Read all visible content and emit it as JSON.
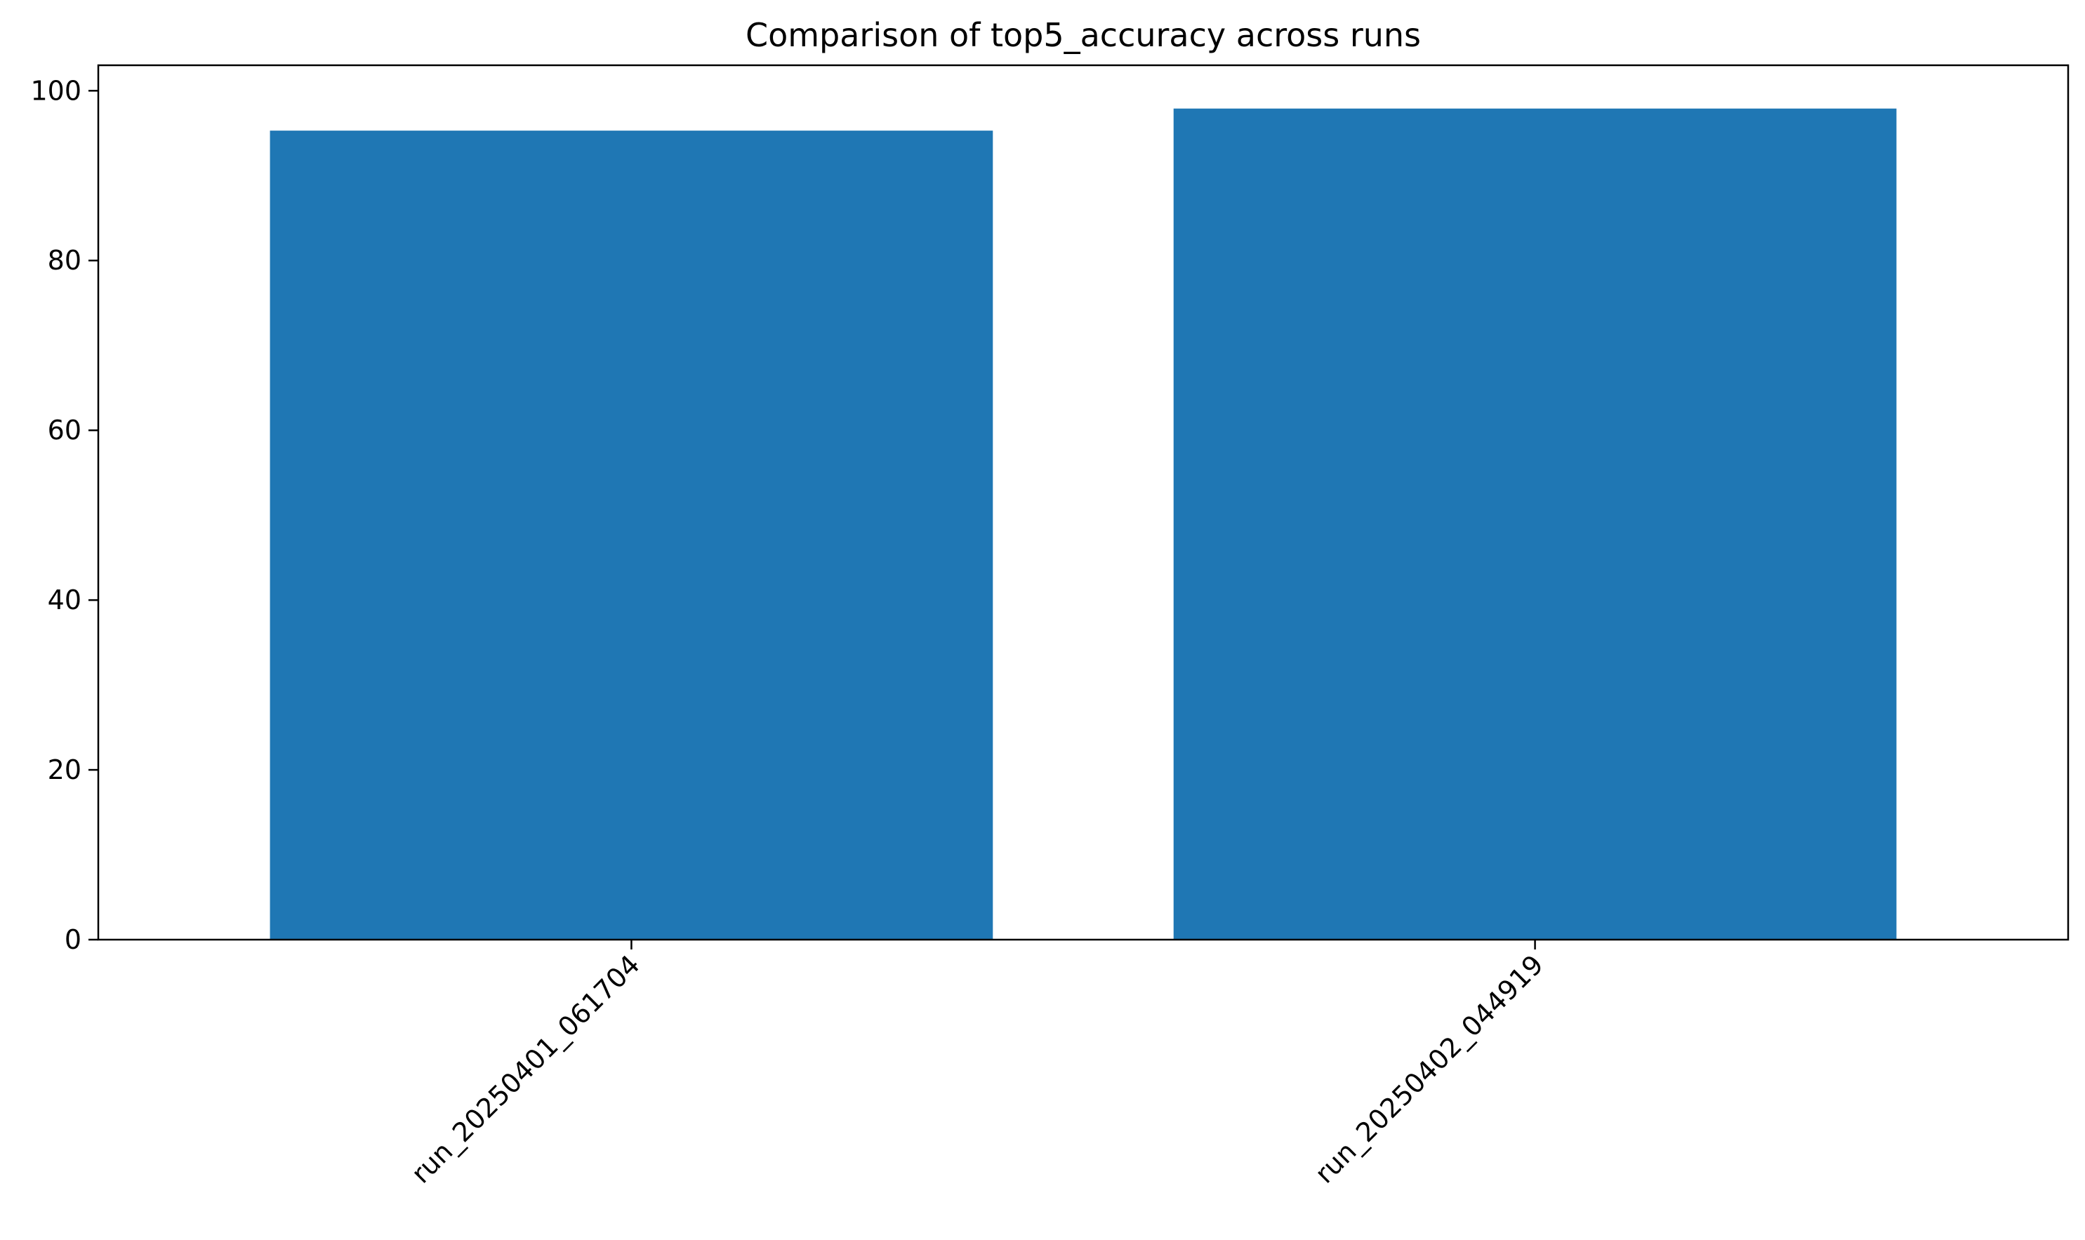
{
  "chart_data": {
    "type": "bar",
    "title": "Comparison of top5_accuracy across runs",
    "xlabel": "",
    "ylabel": "",
    "categories": [
      "run_20250401_061704",
      "run_20250402_044919"
    ],
    "values": [
      95.3,
      97.9
    ],
    "ylim": [
      0,
      103
    ],
    "yticks": [
      0,
      20,
      40,
      60,
      80,
      100
    ],
    "bar_color": "#1f77b4",
    "grid": false,
    "legend": "none",
    "xtick_rotation": 45
  }
}
